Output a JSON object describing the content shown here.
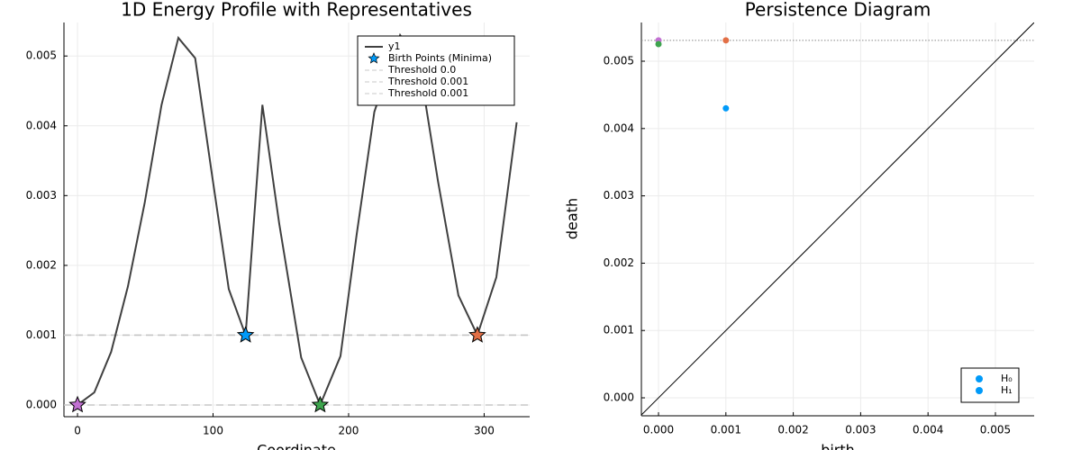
{
  "chart_data": [
    {
      "type": "line",
      "title": "1D Energy Profile with Representatives",
      "xlabel": "Coordinate",
      "xlim": [
        -10,
        333.6
      ],
      "ylim": [
        -0.000168,
        0.00548
      ],
      "xticks": [
        0,
        100,
        200,
        300
      ],
      "yticks": [
        {
          "value": 0,
          "label": "0.000"
        },
        {
          "value": 0.001,
          "label": "0.001"
        },
        {
          "value": 0.002,
          "label": "0.002"
        },
        {
          "value": 0.003,
          "label": "0.003"
        },
        {
          "value": 0.004,
          "label": "0.004"
        },
        {
          "value": 0.005,
          "label": "0.005"
        }
      ],
      "grid": true,
      "legend": "top-right",
      "series": [
        {
          "name": "y1",
          "type": "line",
          "color": "#404040",
          "x": [
            0,
            12.4,
            24.8,
            37.2,
            49.6,
            62,
            74.4,
            86.8,
            99.2,
            111.6,
            124,
            136.4,
            148.8,
            165,
            179,
            194,
            206,
            219,
            238,
            252,
            266,
            281,
            295,
            309,
            324
          ],
          "values": [
            0,
            0.00018,
            0.00076,
            0.0017,
            0.0029,
            0.0043,
            0.00526,
            0.00497,
            0.0033,
            0.00166,
            0.001,
            0.0043,
            0.0026,
            0.00068,
            0,
            0.0007,
            0.00245,
            0.0042,
            0.0053,
            0.0049,
            0.0032,
            0.00157,
            0.001,
            0.00183,
            0.00405
          ]
        },
        {
          "name": "Birth Points (Minima)",
          "type": "scatter",
          "marker": "star",
          "color": "#009af9",
          "point_colors": [
            "#c271d2",
            "#009af9",
            "#3da44d",
            "#e26f46"
          ],
          "x": [
            0,
            124,
            179,
            295
          ],
          "values": [
            0,
            0.001,
            0,
            0.001
          ]
        }
      ],
      "hlines": [
        {
          "name": "Threshold 0.0",
          "value": 0,
          "color": "#c8c8c8"
        },
        {
          "name": "Threshold 0.001",
          "value": 0.001,
          "color": "#c8c8c8"
        },
        {
          "name": "Threshold 0.001",
          "value": 0.001,
          "color": "#c8c8c8"
        }
      ]
    },
    {
      "type": "scatter",
      "title": "Persistence Diagram",
      "xlabel": "birth",
      "ylabel": "death",
      "xlim": [
        -0.000254,
        0.005575
      ],
      "ylim": [
        -0.000267,
        0.005575
      ],
      "xticks": [
        {
          "value": 0,
          "label": "0.000"
        },
        {
          "value": 0.001,
          "label": "0.001"
        },
        {
          "value": 0.002,
          "label": "0.002"
        },
        {
          "value": 0.003,
          "label": "0.003"
        },
        {
          "value": 0.004,
          "label": "0.004"
        },
        {
          "value": 0.005,
          "label": "0.005"
        }
      ],
      "yticks": [
        {
          "value": 0,
          "label": "0.000"
        },
        {
          "value": 0.001,
          "label": "0.001"
        },
        {
          "value": 0.002,
          "label": "0.002"
        },
        {
          "value": 0.003,
          "label": "0.003"
        },
        {
          "value": 0.004,
          "label": "0.004"
        },
        {
          "value": 0.005,
          "label": "0.005"
        }
      ],
      "grid": true,
      "legend": "bottom-right",
      "diagonal": true,
      "hline": {
        "value": 0.00531,
        "style": "dotted",
        "color": "#888888"
      },
      "series": [
        {
          "name": "H₀",
          "type": "scatter",
          "marker": "circle",
          "color": "#009af9",
          "point_colors": [
            "#c271d2",
            "#3da44d",
            "#e26f46",
            "#009af9"
          ],
          "x": [
            0,
            0,
            0.001,
            0.001
          ],
          "values": [
            0.00531,
            0.005254,
            0.00531,
            0.0043
          ]
        },
        {
          "name": "H₁",
          "type": "scatter",
          "marker": "circle",
          "color": "#009af9",
          "x": [],
          "values": []
        }
      ]
    }
  ]
}
